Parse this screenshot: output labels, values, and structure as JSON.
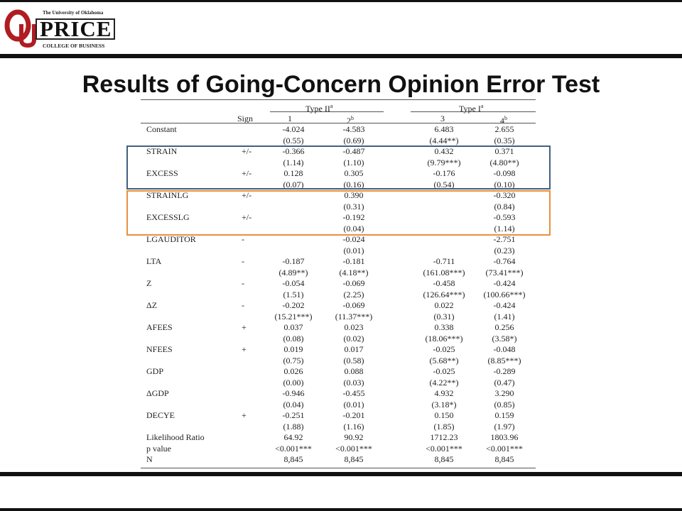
{
  "logo": {
    "university": "The University of Oklahoma",
    "name": "PRICE",
    "college": "COLLEGE OF BUSINESS",
    "mark": "OU"
  },
  "title": "Results of Going-Concern Opinion Error Test",
  "table": {
    "header": {
      "sign": "Sign",
      "type2": "Type II",
      "type2_sup": "a",
      "type1": "Type I",
      "type1_sup": "a",
      "cols": [
        "1",
        "2",
        "3",
        "4"
      ],
      "col2_sup": "b",
      "col4_sup": "b"
    },
    "rows": [
      {
        "label": "Constant",
        "sign": "",
        "vals": [
          "-4.024",
          "-4.583",
          "6.483",
          "2.655"
        ]
      },
      {
        "label": "",
        "sign": "",
        "vals": [
          "(0.55)",
          "(0.69)",
          "(4.44**)",
          "(0.35)"
        ]
      },
      {
        "label": "STRAIN",
        "sign": "+/-",
        "vals": [
          "-0.366",
          "-0.487",
          "0.432",
          "0.371"
        ]
      },
      {
        "label": "",
        "sign": "",
        "vals": [
          "(1.14)",
          "(1.10)",
          "(9.79***)",
          "(4.80**)"
        ]
      },
      {
        "label": "EXCESS",
        "sign": "+/-",
        "vals": [
          "0.128",
          "0.305",
          "-0.176",
          "-0.098"
        ]
      },
      {
        "label": "",
        "sign": "",
        "vals": [
          "(0.07)",
          "(0.16)",
          "(0.54)",
          "(0.10)"
        ]
      },
      {
        "label": "STRAINLG",
        "sign": "+/-",
        "vals": [
          "",
          "0.390",
          "",
          "-0.320"
        ]
      },
      {
        "label": "",
        "sign": "",
        "vals": [
          "",
          "(0.31)",
          "",
          "(0.84)"
        ]
      },
      {
        "label": "EXCESSLG",
        "sign": "+/-",
        "vals": [
          "",
          "-0.192",
          "",
          "-0.593"
        ]
      },
      {
        "label": "",
        "sign": "",
        "vals": [
          "",
          "(0.04)",
          "",
          "(1.14)"
        ]
      },
      {
        "label": "LGAUDITOR",
        "sign": "-",
        "vals": [
          "",
          "-0.024",
          "",
          "-2.751"
        ]
      },
      {
        "label": "",
        "sign": "",
        "vals": [
          "",
          "(0.01)",
          "",
          "(0.23)"
        ]
      },
      {
        "label": "LTA",
        "sign": "-",
        "vals": [
          "-0.187",
          "-0.181",
          "-0.711",
          "-0.764"
        ]
      },
      {
        "label": "",
        "sign": "",
        "vals": [
          "(4.89**)",
          "(4.18**)",
          "(161.08***)",
          "(73.41***)"
        ]
      },
      {
        "label": "Z",
        "sign": "-",
        "vals": [
          "-0.054",
          "-0.069",
          "-0.458",
          "-0.424"
        ]
      },
      {
        "label": "",
        "sign": "",
        "vals": [
          "(1.51)",
          "(2.25)",
          "(126.64***)",
          "(100.66***)"
        ]
      },
      {
        "label": "ΔZ",
        "sign": "-",
        "vals": [
          "-0.202",
          "-0.069",
          "0.022",
          "-0.424"
        ]
      },
      {
        "label": "",
        "sign": "",
        "vals": [
          "(15.21***)",
          "(11.37***)",
          "(0.31)",
          "(1.41)"
        ]
      },
      {
        "label": "AFEES",
        "sign": "+",
        "vals": [
          "0.037",
          "0.023",
          "0.338",
          "0.256"
        ]
      },
      {
        "label": "",
        "sign": "",
        "vals": [
          "(0.08)",
          "(0.02)",
          "(18.06***)",
          "(3.58*)"
        ]
      },
      {
        "label": "NFEES",
        "sign": "+",
        "vals": [
          "0.019",
          "0.017",
          "-0.025",
          "-0.048"
        ]
      },
      {
        "label": "",
        "sign": "",
        "vals": [
          "(0.75)",
          "(0.58)",
          "(5.68**)",
          "(8.85***)"
        ]
      },
      {
        "label": "GDP",
        "sign": "",
        "vals": [
          "0.026",
          "0.088",
          "-0.025",
          "-0.289"
        ]
      },
      {
        "label": "",
        "sign": "",
        "vals": [
          "(0.00)",
          "(0.03)",
          "(4.22**)",
          "(0.47)"
        ]
      },
      {
        "label": "ΔGDP",
        "sign": "",
        "vals": [
          "-0.946",
          "-0.455",
          "4.932",
          "3.290"
        ]
      },
      {
        "label": "",
        "sign": "",
        "vals": [
          "(0.04)",
          "(0.01)",
          "(3.18*)",
          "(0.85)"
        ]
      },
      {
        "label": "DECYE",
        "sign": "+",
        "vals": [
          "-0.251",
          "-0.201",
          "0.150",
          "0.159"
        ]
      },
      {
        "label": "",
        "sign": "",
        "vals": [
          "(1.88)",
          "(1.16)",
          "(1.85)",
          "(1.97)"
        ]
      },
      {
        "label": "Likelihood Ratio",
        "sign": "",
        "vals": [
          "64.92",
          "90.92",
          "1712.23",
          "1803.96"
        ]
      },
      {
        "label": "p value",
        "sign": "",
        "vals": [
          "<0.001***",
          "<0.001***",
          "<0.001***",
          "<0.001***"
        ]
      },
      {
        "label": "N",
        "sign": "",
        "vals": [
          "8,845",
          "8,845",
          "8,845",
          "8,845"
        ]
      }
    ]
  },
  "highlights": {
    "blue": "#41607f",
    "orange": "#e8913f"
  }
}
